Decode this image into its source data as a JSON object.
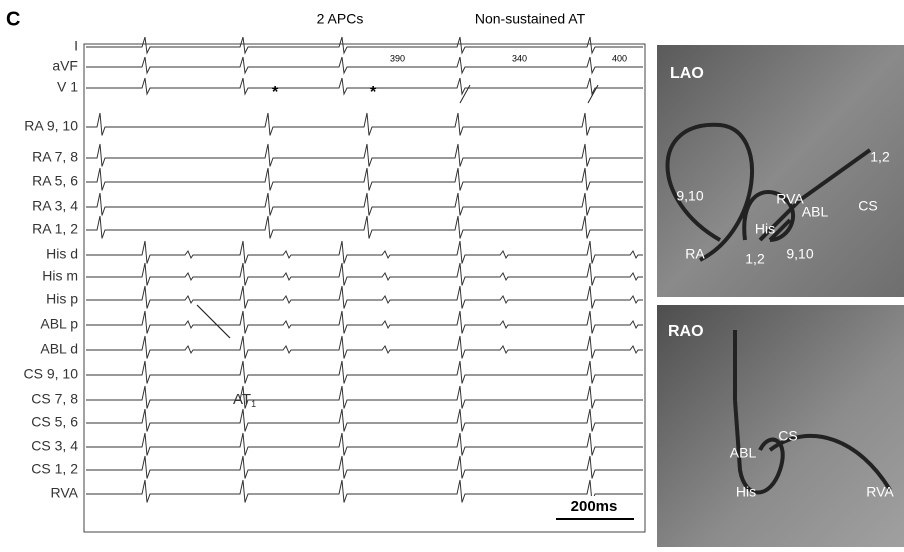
{
  "panel_label": "C",
  "annotations": {
    "apcs": "2 APCs",
    "at": "Non-sustained AT"
  },
  "channels": [
    "I",
    "aVF",
    "V 1",
    "RA 9, 10",
    "RA 7, 8",
    "RA 5, 6",
    "RA 3, 4",
    "RA 1, 2",
    "His d",
    "His m",
    "His p",
    "ABL p",
    "ABL d",
    "CS 9, 10",
    "CS 7, 8",
    "CS 5, 6",
    "CS 3, 4",
    "CS 1, 2",
    "RVA"
  ],
  "intervals": [
    390,
    340,
    400
  ],
  "asterisks": [
    "*",
    "*"
  ],
  "at_label": {
    "text": "AT",
    "subscript": "1"
  },
  "scale_bar": "200ms",
  "lao": {
    "title": "LAO",
    "labels": [
      "9,10",
      "RVA",
      "ABL",
      "CS",
      "1,2",
      "His",
      "RA",
      "1,2",
      "9,10"
    ]
  },
  "rao": {
    "title": "RAO",
    "labels": [
      "CS",
      "ABL",
      "His",
      "RVA"
    ]
  }
}
